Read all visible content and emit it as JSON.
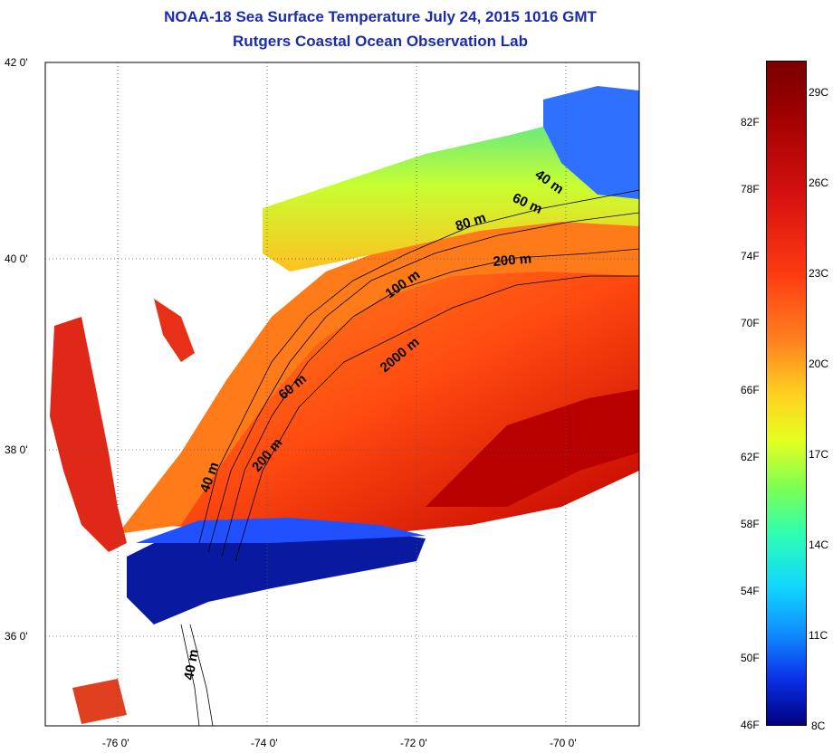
{
  "title": "NOAA-18 Sea Surface Temperature July 24, 2015 1016 GMT",
  "subtitle": "Rutgers Coastal Ocean Observation Lab",
  "map": {
    "lat_labels": [
      "42 0'",
      "40 0'",
      "38 0'",
      "36 0'"
    ],
    "lon_labels": [
      "-76 0'",
      "-74 0'",
      "-72 0'",
      "-70 0'"
    ],
    "lat_range": [
      35,
      42
    ],
    "lon_range": [
      -77,
      -69
    ],
    "contour_labels": [
      "40 m",
      "60 m",
      "80 m",
      "200 m",
      "100 m",
      "2000 m",
      "60 m",
      "200 m",
      "40 m",
      "40 m"
    ]
  },
  "colorbar": {
    "fahrenheit_labels": [
      "82F",
      "78F",
      "74F",
      "70F",
      "66F",
      "62F",
      "58F",
      "54F",
      "50F",
      "46F"
    ],
    "celsius_labels": [
      "29C",
      "26C",
      "23C",
      "20C",
      "17C",
      "14C",
      "11C",
      "8C"
    ],
    "range_celsius": [
      8,
      31
    ],
    "colors": [
      "#7a0000",
      "#d61010",
      "#ff8020",
      "#ffd020",
      "#80ff50",
      "#10d8ff",
      "#0a30e8",
      "#000080"
    ]
  }
}
